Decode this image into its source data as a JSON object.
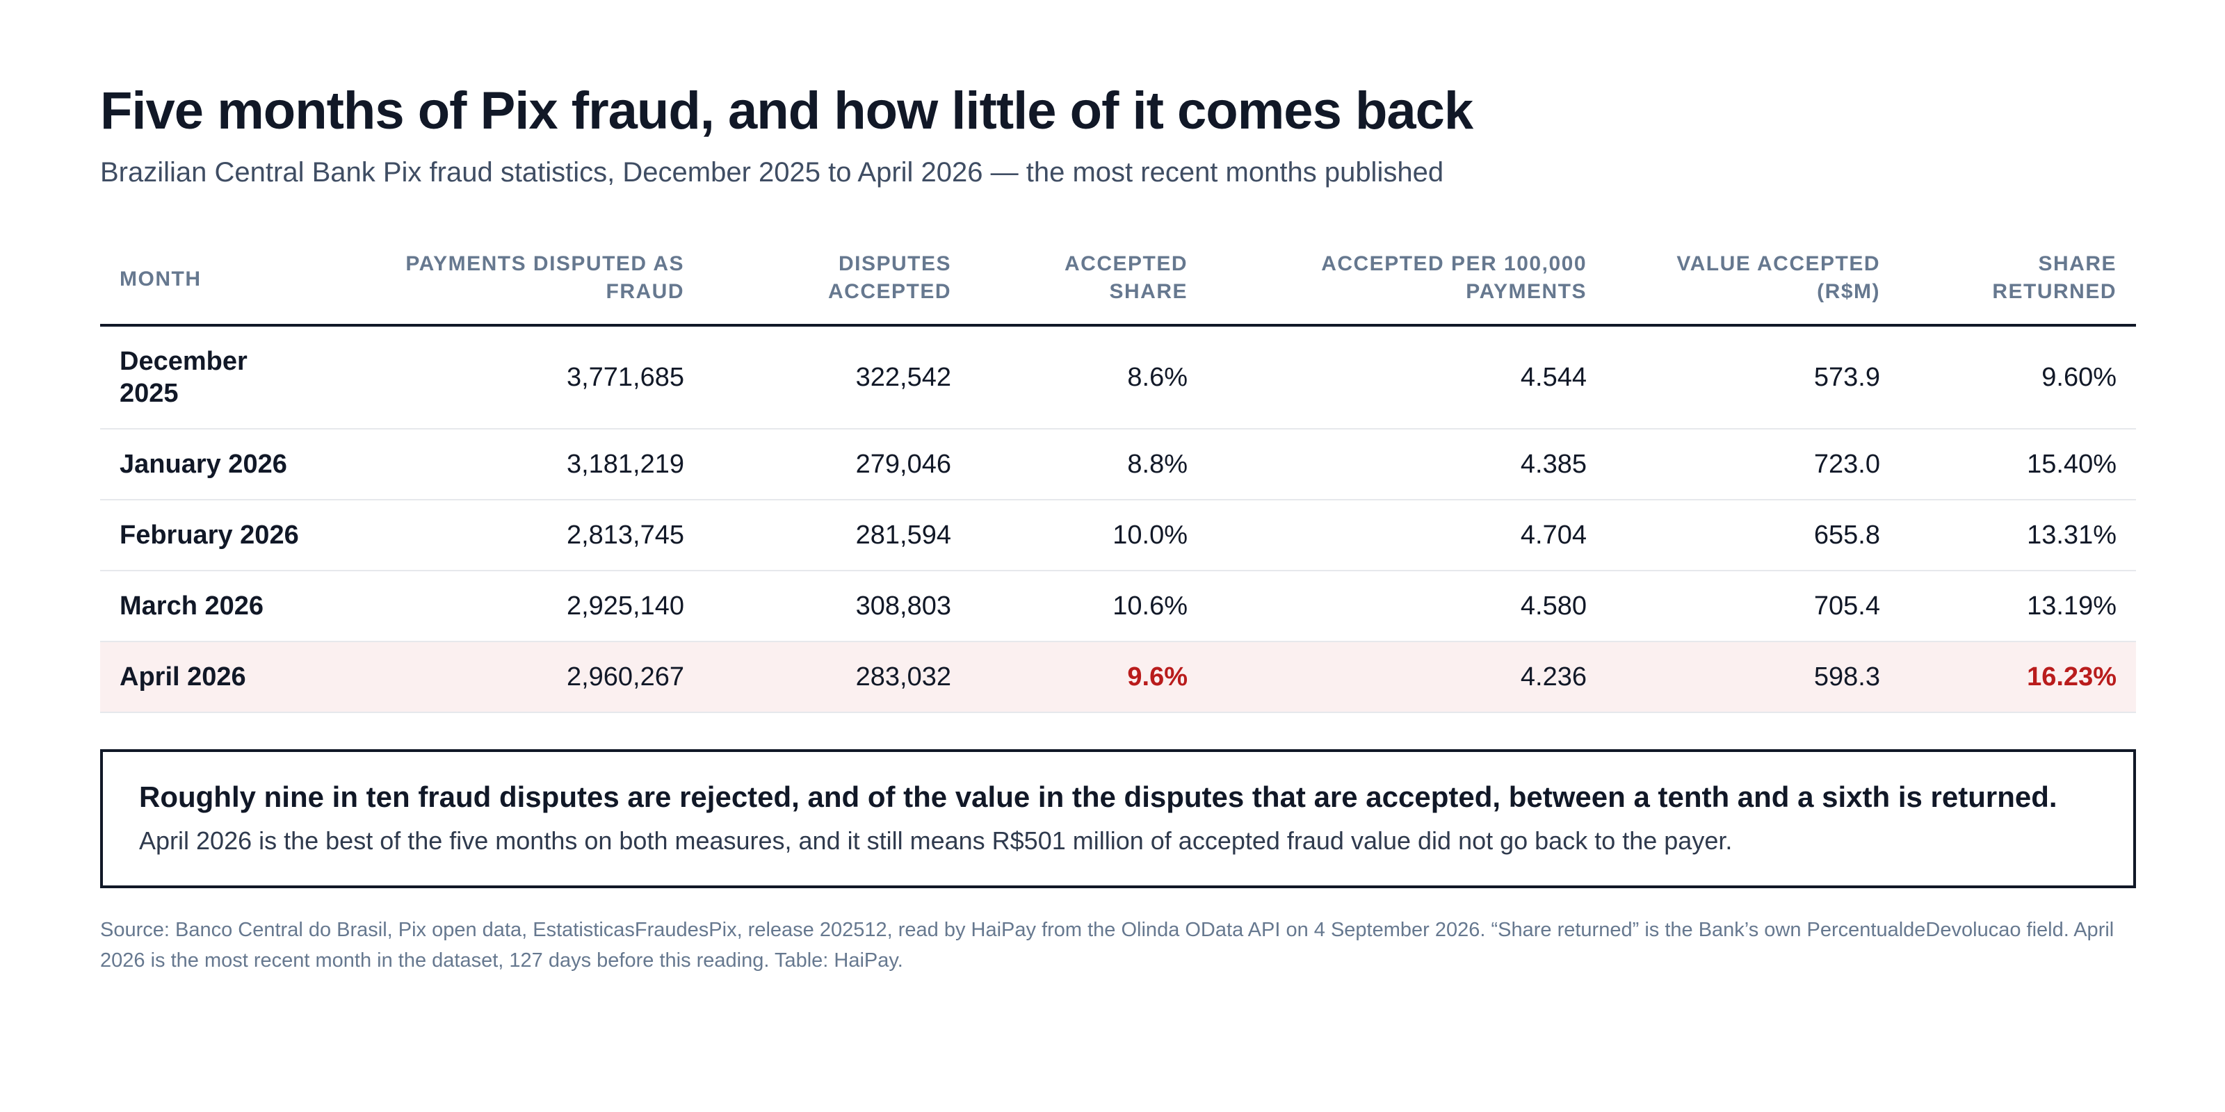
{
  "title": "Five months of Pix fraud, and how little of it comes back",
  "subtitle": "Brazilian Central Bank Pix fraud statistics, December 2025 to April 2026 — the most recent months published",
  "table": {
    "headers": [
      "Month",
      "Payments disputed as fraud",
      "Disputes accepted",
      "Accepted share",
      "Accepted per 100,000 payments",
      "Value accepted (R$M)",
      "Share returned"
    ],
    "rows": [
      {
        "month": "December 2025",
        "disputed": "3,771,685",
        "accepted": "322,542",
        "accepted_share": "8.6%",
        "per_100k": "4.544",
        "value": "573.9",
        "share_returned": "9.60%"
      },
      {
        "month": "January 2026",
        "disputed": "3,181,219",
        "accepted": "279,046",
        "accepted_share": "8.8%",
        "per_100k": "4.385",
        "value": "723.0",
        "share_returned": "15.40%"
      },
      {
        "month": "February 2026",
        "disputed": "2,813,745",
        "accepted": "281,594",
        "accepted_share": "10.0%",
        "per_100k": "4.704",
        "value": "655.8",
        "share_returned": "13.31%"
      },
      {
        "month": "March 2026",
        "disputed": "2,925,140",
        "accepted": "308,803",
        "accepted_share": "10.6%",
        "per_100k": "4.580",
        "value": "705.4",
        "share_returned": "13.19%"
      },
      {
        "month": "April 2026",
        "disputed": "2,960,267",
        "accepted": "283,032",
        "accepted_share": "9.6%",
        "per_100k": "4.236",
        "value": "598.3",
        "share_returned": "16.23%"
      }
    ],
    "highlight_color": "#b91c1c",
    "highlight_row_bg": "#fbf0f0"
  },
  "callout": {
    "headline": "Roughly nine in ten fraud disputes are rejected, and of the value in the disputes that are accepted, between a tenth and a sixth is returned.",
    "body": "April 2026 is the best of the five months on both measures, and it still means R$501 million of accepted fraud value did not go back to the payer."
  },
  "source": "Source: Banco Central do Brasil, Pix open data, EstatisticasFraudesPix, release 202512, read by HaiPay from the Olinda OData API on 4 September 2026. “Share returned” is the Bank’s own PercentualdeDevolucao field. April 2026 is the most recent month in the dataset, 127 days before this reading. Table: HaiPay."
}
